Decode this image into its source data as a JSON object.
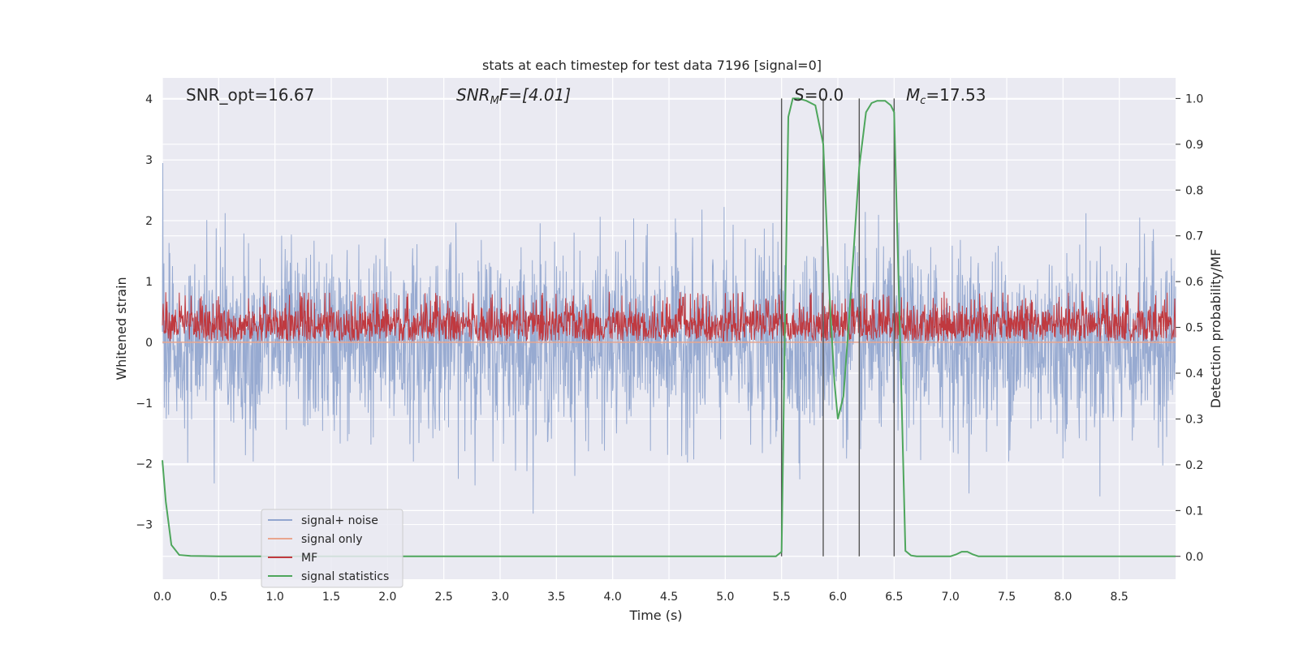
{
  "chart_data": {
    "type": "line",
    "title": "stats at each timestep for test data 7196 [signal=0]",
    "xlabel": "Time (s)",
    "ylabel_left": "Whitened strain",
    "ylabel_right": "Detection probability/MF",
    "xlim": [
      0.0,
      9.0
    ],
    "ylim_left": [
      -3.9,
      4.35
    ],
    "ylim_right": [
      -0.05,
      1.045
    ],
    "x_ticks": [
      0.0,
      0.5,
      1.0,
      1.5,
      2.0,
      2.5,
      3.0,
      3.5,
      4.0,
      4.5,
      5.0,
      5.5,
      6.0,
      6.5,
      7.0,
      7.5,
      8.0,
      8.5
    ],
    "x_tick_labels": [
      "0.0",
      "0.5",
      "1.0",
      "1.5",
      "2.0",
      "2.5",
      "3.0",
      "3.5",
      "4.0",
      "4.5",
      "5.0",
      "5.5",
      "6.0",
      "6.5",
      "7.0",
      "7.5",
      "8.0",
      "8.5"
    ],
    "y_left_ticks": [
      -3,
      -2,
      -1,
      0,
      1,
      2,
      3,
      4
    ],
    "y_left_tick_labels": [
      "−3",
      "−2",
      "−1",
      "0",
      "1",
      "2",
      "3",
      "4"
    ],
    "y_right_ticks": [
      0.0,
      0.1,
      0.2,
      0.3,
      0.4,
      0.5,
      0.6,
      0.7,
      0.8,
      0.9,
      1.0
    ],
    "y_right_tick_labels": [
      "0.0",
      "0.1",
      "0.2",
      "0.3",
      "0.4",
      "0.5",
      "0.6",
      "0.7",
      "0.8",
      "0.9",
      "1.0"
    ],
    "grid": true,
    "legend_position": "lower-left",
    "annotations": {
      "snr_opt": "SNR_opt=16.67",
      "snr_mf_sym": "SNR",
      "snr_mf_sub": "M",
      "snr_mf_rest": "F=[4.01]",
      "s_sym": "S",
      "s_rest": "=0.0",
      "mc_sym": "M",
      "mc_sub": "c",
      "mc_rest": "=17.53"
    },
    "vertical_lines_x": [
      5.5,
      5.87,
      6.19,
      6.5
    ],
    "series": [
      {
        "name": "signal+ noise",
        "color": "#92a6cf",
        "axis": "left",
        "noise_envelope": [
          -1.3,
          1.3
        ],
        "peak_range": [
          -3.5,
          4.0
        ]
      },
      {
        "name": "signal only",
        "color": "#e9a68e",
        "axis": "left",
        "values_constant": 0.0
      },
      {
        "name": "MF",
        "color": "#c0393f",
        "axis": "right",
        "range": [
          0.47,
          0.59
        ]
      },
      {
        "name": "signal statistics",
        "color": "#4ea65c",
        "axis": "right",
        "x": [
          0.0,
          0.03,
          0.08,
          0.15,
          0.25,
          0.5,
          1.0,
          2.0,
          3.0,
          4.0,
          5.0,
          5.3,
          5.45,
          5.5,
          5.53,
          5.56,
          5.6,
          5.65,
          5.72,
          5.8,
          5.87,
          5.93,
          5.97,
          6.0,
          6.05,
          6.1,
          6.19,
          6.25,
          6.3,
          6.35,
          6.42,
          6.47,
          6.5,
          6.55,
          6.6,
          6.65,
          6.7,
          6.8,
          7.0,
          7.05,
          7.1,
          7.15,
          7.2,
          7.25,
          7.5,
          8.0,
          8.5,
          9.0
        ],
        "values": [
          0.21,
          0.12,
          0.025,
          0.003,
          0.001,
          0.0,
          0.0,
          0.0,
          0.0,
          0.0,
          0.0,
          0.0,
          0.0,
          0.01,
          0.5,
          0.96,
          1.0,
          1.0,
          0.995,
          0.985,
          0.9,
          0.55,
          0.38,
          0.3,
          0.35,
          0.52,
          0.85,
          0.97,
          0.99,
          0.995,
          0.995,
          0.985,
          0.97,
          0.5,
          0.012,
          0.002,
          0.0,
          0.0,
          0.0,
          0.004,
          0.01,
          0.01,
          0.004,
          0.0,
          0.0,
          0.0,
          0.0,
          0.0
        ]
      }
    ]
  }
}
